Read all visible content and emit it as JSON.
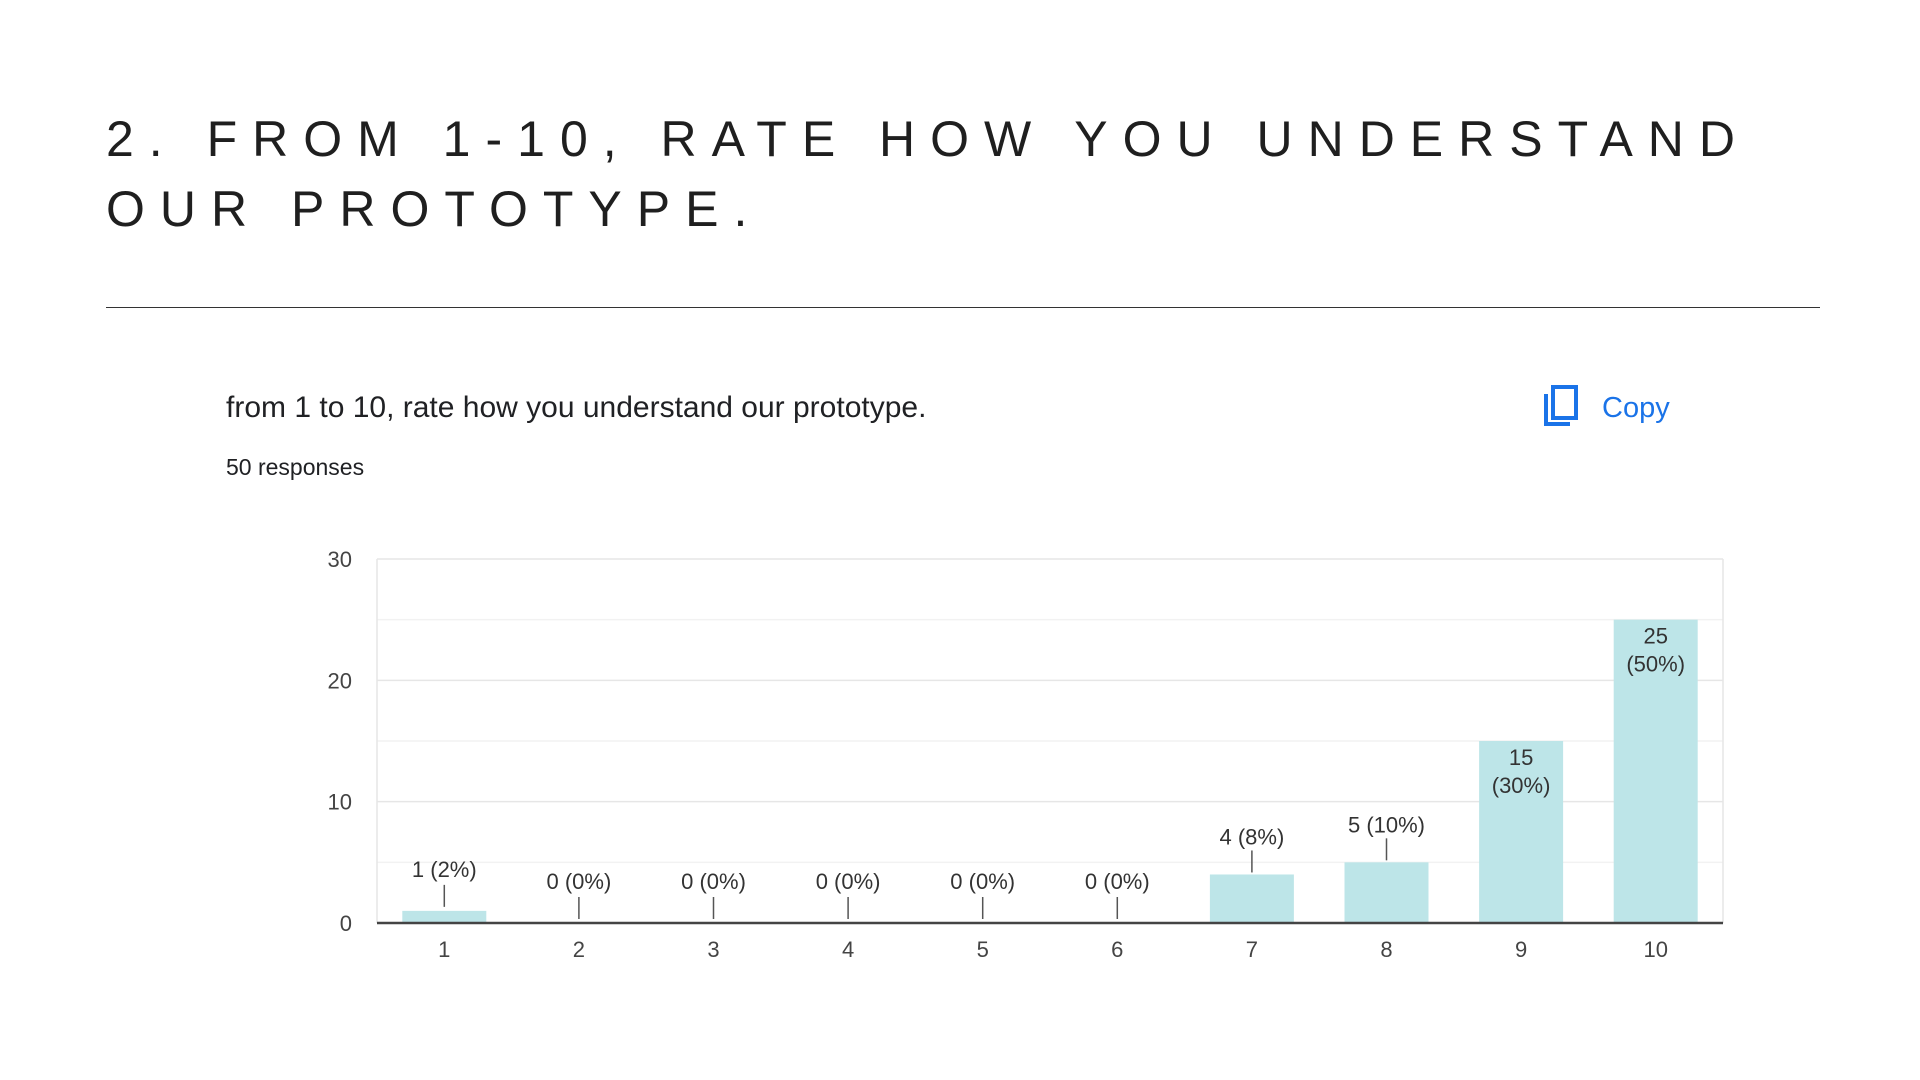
{
  "slide": {
    "title": "2. FROM 1-10, RATE HOW YOU UNDERSTAND OUR PROTOTYPE."
  },
  "form": {
    "question": "from 1 to 10, rate how you understand our prototype.",
    "responses": "50 responses",
    "copy_label": "Copy",
    "copy_icon": "copy-icon"
  },
  "colors": {
    "bar": "#bde5e8",
    "accent": "#1a73e8",
    "axis": "#444444",
    "grid": "#e6e6e6"
  },
  "chart_data": {
    "type": "bar",
    "categories": [
      "1",
      "2",
      "3",
      "4",
      "5",
      "6",
      "7",
      "8",
      "9",
      "10"
    ],
    "values": [
      1,
      0,
      0,
      0,
      0,
      0,
      4,
      5,
      15,
      25
    ],
    "labels": [
      "1 (2%)",
      "0 (0%)",
      "0 (0%)",
      "0 (0%)",
      "0 (0%)",
      "0 (0%)",
      "4 (8%)",
      "5 (10%)",
      "15 (30%)",
      "25 (50%)"
    ],
    "yticks": [
      "0",
      "10",
      "20",
      "30"
    ],
    "ylim": [
      0,
      30
    ],
    "grid": true,
    "legend": "none"
  }
}
